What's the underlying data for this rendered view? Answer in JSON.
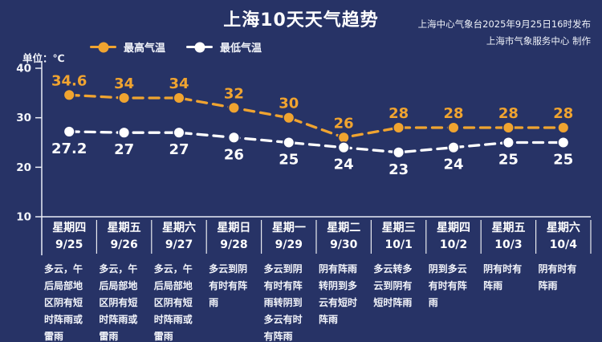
{
  "header": {
    "title": "上海10天天气趋势",
    "credit_line1": "上海中心气象台2025年9月25日16时发布",
    "credit_line2": "上海市气象服务中心 制作"
  },
  "colors": {
    "background": "#273366",
    "axis": "#e9ecf5",
    "high_series": "#f0a430",
    "low_series": "#ffffff"
  },
  "chart_data": {
    "type": "line",
    "title": "上海10天天气趋势",
    "unit": "单位：℃",
    "weekdays": [
      "星期四",
      "星期五",
      "星期六",
      "星期日",
      "星期一",
      "星期二",
      "星期三",
      "星期四",
      "星期五",
      "星期六"
    ],
    "categories": [
      "9/25",
      "9/26",
      "9/27",
      "9/28",
      "9/29",
      "9/30",
      "10/1",
      "10/2",
      "10/3",
      "10/4"
    ],
    "series": [
      {
        "name": "最高气温",
        "color": "#f0a430",
        "values": [
          34.6,
          34,
          34,
          32,
          30,
          26,
          28,
          28,
          28,
          28
        ]
      },
      {
        "name": "最低气温",
        "color": "#ffffff",
        "values": [
          27.2,
          27,
          27,
          26,
          25,
          24,
          23,
          24,
          25,
          25
        ]
      }
    ],
    "forecasts": [
      "多云，午后局部地区阴有短时阵雨或雷雨",
      "多云，午后局部地区阴有短时阵雨或雷雨",
      "多云，午后局部地区阴有短时阵雨或雷雨",
      "多云到阴有时有阵雨",
      "多云到阴有时有阵雨转阴到多云有时有阵雨",
      "阴有阵雨转阴到多云有短时阵雨",
      "多云转多云到阴有短时阵雨",
      "阴到多云有时有阵雨",
      "阴有时有阵雨",
      "阴有时有阵雨"
    ],
    "ylim": [
      10,
      40
    ],
    "yticks": [
      10,
      20,
      30,
      40
    ],
    "grid": false,
    "legend_position": "top",
    "line_style": "dashed"
  }
}
